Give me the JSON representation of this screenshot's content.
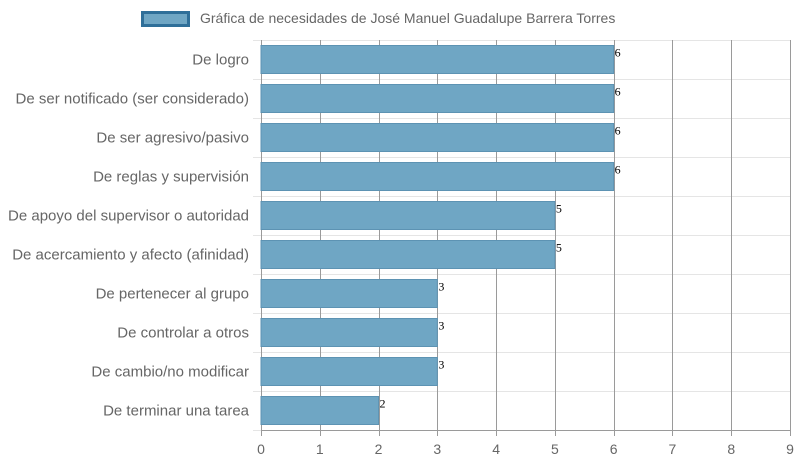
{
  "chart_data": {
    "type": "bar",
    "orientation": "horizontal",
    "categories": [
      "De logro",
      "De ser notificado (ser considerado)",
      "De ser agresivo/pasivo",
      "De reglas y supervisión",
      "De apoyo del supervisor o autoridad",
      "De acercamiento y afecto (afinidad)",
      "De pertenecer al grupo",
      "De controlar a otros",
      "De cambio/no modificar",
      "De terminar una tarea"
    ],
    "series": [
      {
        "name": "Gráfica de necesidades de José Manuel Guadalupe Barrera Torres",
        "values": [
          6,
          6,
          6,
          6,
          5,
          5,
          3,
          3,
          3,
          2
        ]
      }
    ],
    "xlim": [
      0,
      9
    ],
    "xticks": [
      "0",
      "1",
      "2",
      "3",
      "4",
      "5",
      "6",
      "7",
      "8",
      "9"
    ],
    "grid": true,
    "legend_position": "top",
    "data_labels": true,
    "colors": {
      "bar_fill": "#6fa6c4",
      "bar_stroke": "#5d93b3",
      "legend_border": "#2f6f99",
      "grid": "#e5e5e5",
      "grid_major": "#9a9a9a",
      "text": "#666666"
    }
  }
}
